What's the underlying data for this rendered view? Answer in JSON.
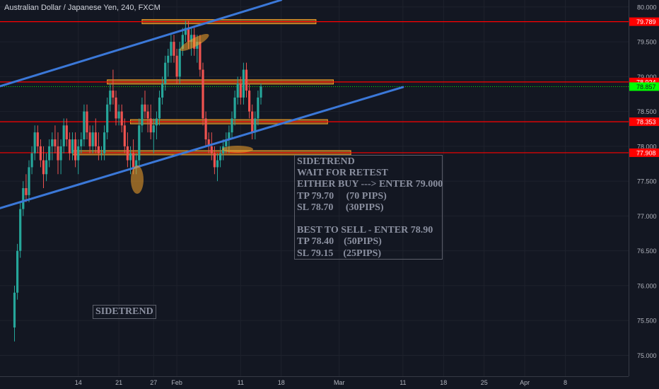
{
  "header": {
    "title": "Australian Dollar / Japanese Yen, 240, FXCM"
  },
  "colors": {
    "background": "#131722",
    "candle_up": "#26a69a",
    "candle_down": "#ef5350",
    "trendline": "#3b78d8",
    "level_line": "#ff0000",
    "zone": "#f7a429",
    "current_price": "#00ff00"
  },
  "chart_data": {
    "type": "candlestick",
    "symbol": "AUDJPY",
    "interval": "240",
    "yaxis": {
      "range": [
        74.7,
        80.1
      ],
      "ticks": [
        "80.000",
        "79.500",
        "79.000",
        "78.500",
        "78.000",
        "77.500",
        "77.000",
        "76.500",
        "76.000",
        "75.500",
        "75.000"
      ],
      "tick_values": [
        80.0,
        79.5,
        79.0,
        78.5,
        78.0,
        77.5,
        77.0,
        76.5,
        76.0,
        75.5,
        75.0
      ]
    },
    "xaxis": {
      "ticks": [
        "14",
        "21",
        "27",
        "Feb",
        "11",
        "18",
        "Mar",
        "11",
        "18",
        "25",
        "Apr",
        "8"
      ],
      "tick_pos": [
        14,
        21,
        27,
        31,
        42,
        49,
        59,
        70,
        77,
        84,
        91,
        98
      ]
    },
    "price_labels": [
      {
        "text": "79.789",
        "value": 79.789,
        "kind": "level"
      },
      {
        "text": "78.924",
        "value": 78.924,
        "kind": "level"
      },
      {
        "text": "78.857",
        "value": 78.857,
        "kind": "current"
      },
      {
        "text": "78.353",
        "value": 78.353,
        "kind": "level"
      },
      {
        "text": "77.908",
        "value": 77.908,
        "kind": "level"
      }
    ],
    "horizontal_levels": [
      79.789,
      78.924,
      78.353,
      77.908
    ],
    "zones": [
      {
        "value": 79.789,
        "from": 25,
        "to": 55
      },
      {
        "value": 78.924,
        "from": 19,
        "to": 58
      },
      {
        "value": 78.353,
        "from": 23,
        "to": 57
      },
      {
        "value": 77.908,
        "from": 13,
        "to": 61
      }
    ],
    "trendlines": [
      {
        "from": [
          0,
          78.85
        ],
        "to": [
          49,
          80.1
        ]
      },
      {
        "from": [
          0,
          77.1
        ],
        "to": [
          70,
          78.85
        ]
      }
    ],
    "candles": [
      [
        3.0,
        75.4,
        76.0,
        75.2,
        75.9
      ],
      [
        3.5,
        75.9,
        76.6,
        75.8,
        76.5
      ],
      [
        4.0,
        76.5,
        77.2,
        76.4,
        77.1
      ],
      [
        4.5,
        77.1,
        77.5,
        77.0,
        77.4
      ],
      [
        5.0,
        77.4,
        77.6,
        77.2,
        77.3
      ],
      [
        5.5,
        77.3,
        77.8,
        77.2,
        77.7
      ],
      [
        6.0,
        77.7,
        78.0,
        77.6,
        77.9
      ],
      [
        6.5,
        77.9,
        78.3,
        77.8,
        78.2
      ],
      [
        7.0,
        78.2,
        78.3,
        77.9,
        78.0
      ],
      [
        7.5,
        78.0,
        78.1,
        77.7,
        77.8
      ],
      [
        8.0,
        77.8,
        78.0,
        77.4,
        77.6
      ],
      [
        8.5,
        77.6,
        77.9,
        77.5,
        77.8
      ],
      [
        9.0,
        77.8,
        78.1,
        77.7,
        78.0
      ],
      [
        9.5,
        78.0,
        78.2,
        77.8,
        78.1
      ],
      [
        10.0,
        78.1,
        78.3,
        77.9,
        78.0
      ],
      [
        10.5,
        78.0,
        78.2,
        77.6,
        77.8
      ],
      [
        11.0,
        77.8,
        78.1,
        77.6,
        78.0
      ],
      [
        11.5,
        78.0,
        78.4,
        77.9,
        78.3
      ],
      [
        12.0,
        78.3,
        78.4,
        78.0,
        78.1
      ],
      [
        12.5,
        78.1,
        78.2,
        77.8,
        77.9
      ],
      [
        13.0,
        77.9,
        78.2,
        77.8,
        78.1
      ],
      [
        13.5,
        78.1,
        78.2,
        77.7,
        77.8
      ],
      [
        14.0,
        77.8,
        78.1,
        77.6,
        78.0
      ],
      [
        14.5,
        78.0,
        78.2,
        77.9,
        78.1
      ],
      [
        15.0,
        78.1,
        78.6,
        78.0,
        78.5
      ],
      [
        15.5,
        78.5,
        78.6,
        78.1,
        78.2
      ],
      [
        16.0,
        78.2,
        78.3,
        77.9,
        78.0
      ],
      [
        16.5,
        78.0,
        78.3,
        77.9,
        78.2
      ],
      [
        17.0,
        78.2,
        78.4,
        77.9,
        78.0
      ],
      [
        17.5,
        78.0,
        78.2,
        77.8,
        77.9
      ],
      [
        18.0,
        77.9,
        78.0,
        77.8,
        77.9
      ],
      [
        18.5,
        77.9,
        78.3,
        77.8,
        78.2
      ],
      [
        19.0,
        78.2,
        78.7,
        78.1,
        78.6
      ],
      [
        19.5,
        78.6,
        78.9,
        78.5,
        78.8
      ],
      [
        20.0,
        78.8,
        79.1,
        78.6,
        78.7
      ],
      [
        20.5,
        78.7,
        78.8,
        78.3,
        78.4
      ],
      [
        21.0,
        78.4,
        78.6,
        78.3,
        78.5
      ],
      [
        21.5,
        78.5,
        78.6,
        78.2,
        78.3
      ],
      [
        22.0,
        78.3,
        78.4,
        77.9,
        78.0
      ],
      [
        22.5,
        78.0,
        78.2,
        77.7,
        77.8
      ],
      [
        23.0,
        77.8,
        78.0,
        77.6,
        77.9
      ],
      [
        23.5,
        77.9,
        78.1,
        77.6,
        77.7
      ],
      [
        24.0,
        77.7,
        77.9,
        77.6,
        77.8
      ],
      [
        24.5,
        77.8,
        78.4,
        77.7,
        78.3
      ],
      [
        25.0,
        78.3,
        78.7,
        78.2,
        78.6
      ],
      [
        25.5,
        78.6,
        78.8,
        78.4,
        78.5
      ],
      [
        26.0,
        78.5,
        78.6,
        78.2,
        78.4
      ],
      [
        26.5,
        78.4,
        78.6,
        78.1,
        78.2
      ],
      [
        27.0,
        78.2,
        78.4,
        77.9,
        78.3
      ],
      [
        27.5,
        78.3,
        78.5,
        78.1,
        78.4
      ],
      [
        28.0,
        78.4,
        78.8,
        78.3,
        78.7
      ],
      [
        28.5,
        78.7,
        79.0,
        78.6,
        78.9
      ],
      [
        29.0,
        78.9,
        79.3,
        78.8,
        79.2
      ],
      [
        29.5,
        79.2,
        79.4,
        79.0,
        79.3
      ],
      [
        30.0,
        79.3,
        79.6,
        79.2,
        79.5
      ],
      [
        30.5,
        79.5,
        79.6,
        79.2,
        79.3
      ],
      [
        31.0,
        79.3,
        79.4,
        78.9,
        79.0
      ],
      [
        31.5,
        79.0,
        79.5,
        78.9,
        79.4
      ],
      [
        32.0,
        79.4,
        79.7,
        79.3,
        79.6
      ],
      [
        32.5,
        79.6,
        79.8,
        79.5,
        79.7
      ],
      [
        33.0,
        79.7,
        79.8,
        79.4,
        79.5
      ],
      [
        33.5,
        79.5,
        79.7,
        79.3,
        79.6
      ],
      [
        34.0,
        79.6,
        79.7,
        79.3,
        79.4
      ],
      [
        34.5,
        79.4,
        79.6,
        79.2,
        79.5
      ],
      [
        35.0,
        79.5,
        79.6,
        79.0,
        79.1
      ],
      [
        35.5,
        79.1,
        79.2,
        78.3,
        78.4
      ],
      [
        36.0,
        78.4,
        78.5,
        78.0,
        78.1
      ],
      [
        36.5,
        78.1,
        78.2,
        77.9,
        78.0
      ],
      [
        37.0,
        78.0,
        78.2,
        77.8,
        77.9
      ],
      [
        37.5,
        77.9,
        78.0,
        77.6,
        77.7
      ],
      [
        38.0,
        77.7,
        77.9,
        77.5,
        77.8
      ],
      [
        38.5,
        77.8,
        78.0,
        77.7,
        77.9
      ],
      [
        39.0,
        77.9,
        78.1,
        77.8,
        78.0
      ],
      [
        39.5,
        78.0,
        78.2,
        77.9,
        78.1
      ],
      [
        40.0,
        78.1,
        78.3,
        77.9,
        78.2
      ],
      [
        40.5,
        78.2,
        78.5,
        78.1,
        78.4
      ],
      [
        41.0,
        78.4,
        78.8,
        78.3,
        78.7
      ],
      [
        41.5,
        78.7,
        79.0,
        78.6,
        78.9
      ],
      [
        42.0,
        78.9,
        79.0,
        78.6,
        78.7
      ],
      [
        42.5,
        78.7,
        79.2,
        78.6,
        79.1
      ],
      [
        43.0,
        79.1,
        79.2,
        78.7,
        78.8
      ],
      [
        43.5,
        78.8,
        78.9,
        78.4,
        78.5
      ],
      [
        44.0,
        78.5,
        78.6,
        78.1,
        78.2
      ],
      [
        44.5,
        78.2,
        78.5,
        78.1,
        78.4
      ],
      [
        45.0,
        78.4,
        78.8,
        78.3,
        78.7
      ],
      [
        45.5,
        78.7,
        78.9,
        78.6,
        78.86
      ]
    ]
  },
  "annotations": {
    "main_lines": [
      "SIDETREND",
      "WAIT FOR RETEST",
      "EITHER BUY ---> ENTER 79.000",
      "TP 79.70     (70 PIPS)",
      "SL 78.70     (30PIPS)",
      "",
      "BEST TO SELL - ENTER 78.90",
      "TP 78.40    (50PIPS)",
      "SL 79.15    (25PIPS)"
    ],
    "side_label": "SIDETREND"
  }
}
